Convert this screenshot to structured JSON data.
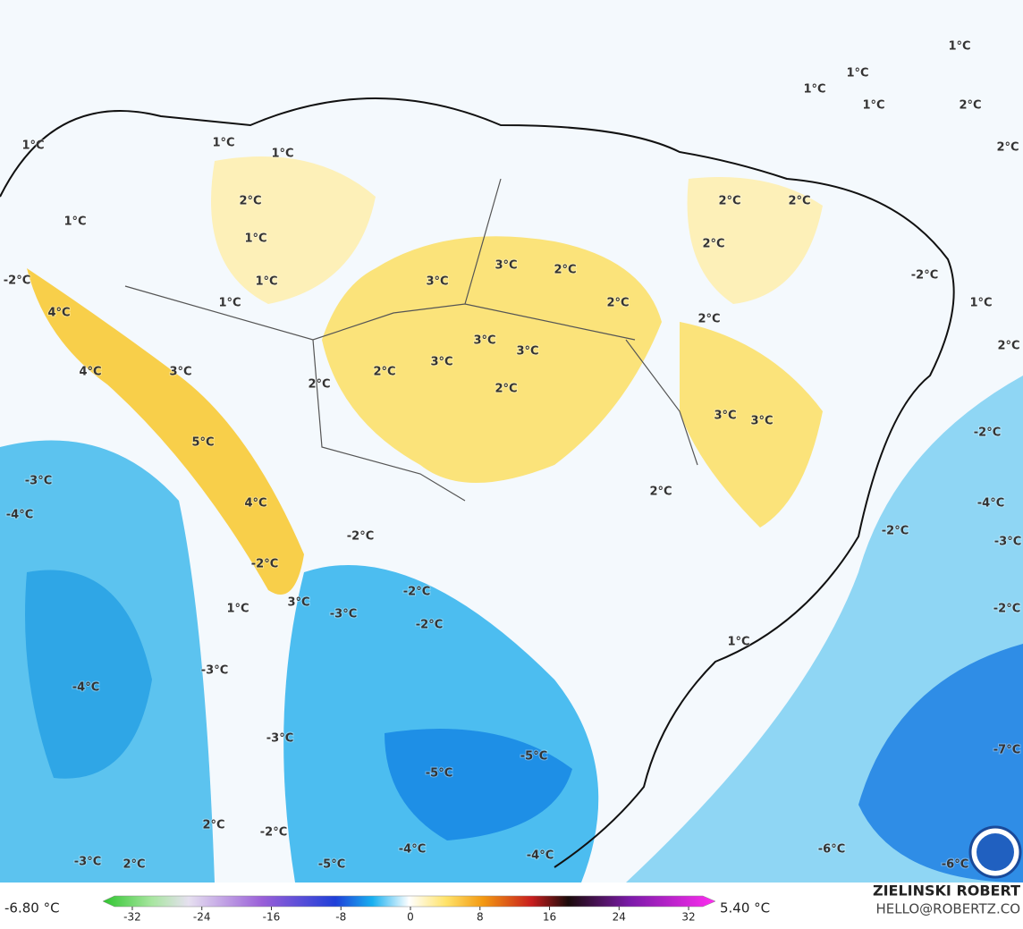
{
  "map": {
    "labels": [
      "1°C",
      "1°C",
      "1°C",
      "1°C",
      "2°C",
      "2°C",
      "1°C",
      "1°C",
      "1°C",
      "2°C",
      "2°C",
      "2°C",
      "1°C",
      "1°C",
      "2°C",
      "3°C",
      "2°C",
      "3°C",
      "1°C",
      "-2°C",
      "1°C",
      "2°C",
      "1°C",
      "-2°C",
      "4°C",
      "2°C",
      "3°C",
      "3°C",
      "2°C",
      "3°C",
      "4°C",
      "3°C",
      "2°C",
      "2°C",
      "2°C",
      "3°C",
      "3°C",
      "-2°C",
      "5°C",
      "-3°C",
      "2°C",
      "4°C",
      "-4°C",
      "-4°C",
      "-2°C",
      "-3°C",
      "-2°C",
      "-2°C",
      "-2°C",
      "3°C",
      "-2°C",
      "1°C",
      "-3°C",
      "-2°C",
      "1°C",
      "-3°C",
      "-4°C",
      "-3°C",
      "-7°C",
      "-5°C",
      "-5°C",
      "2°C",
      "-2°C",
      "-6°C",
      "-4°C",
      "-4°C",
      "-5°C",
      "-6°C",
      "-3°C",
      "2°C"
    ]
  },
  "colorbar": {
    "min_label": "-6.80 °C",
    "max_label": "5.40 °C",
    "ticks": [
      -32,
      -24,
      -16,
      -8,
      0,
      8,
      16,
      24,
      32
    ]
  },
  "credits": {
    "name": "ZIELINSKI ROBERT",
    "site": "HELLO@ROBERTZ.CO"
  }
}
